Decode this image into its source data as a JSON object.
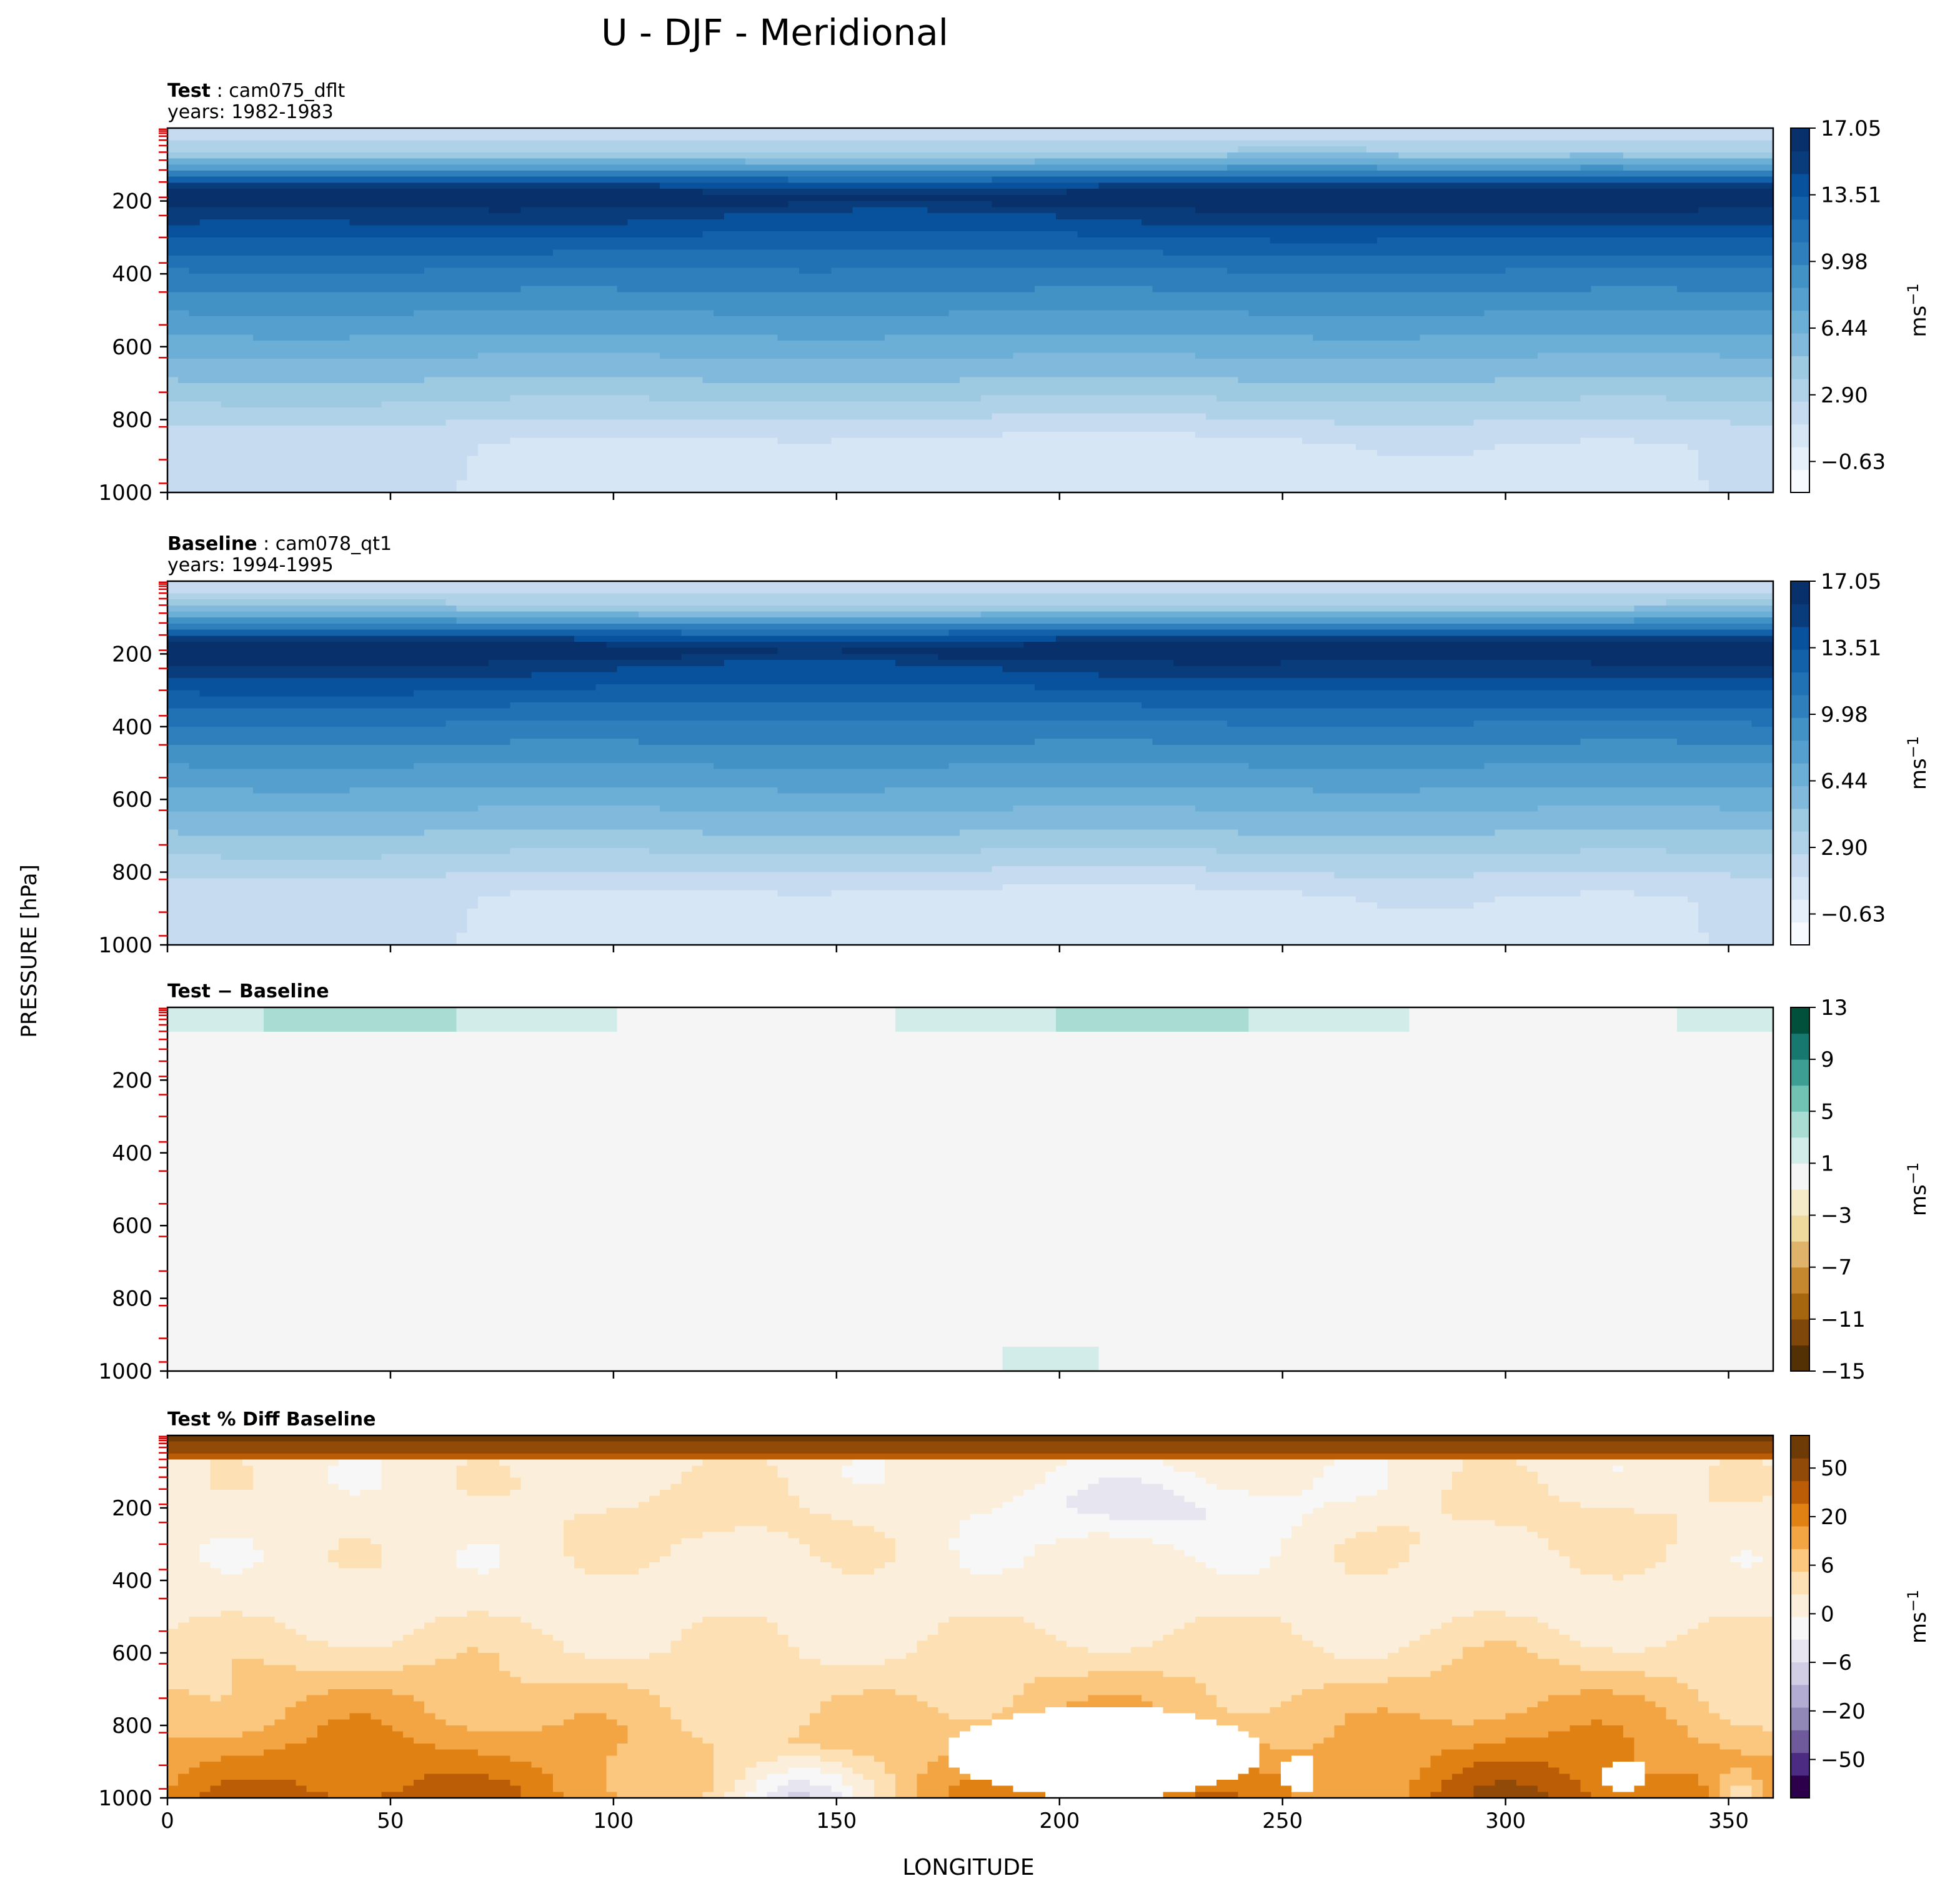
{
  "figure": {
    "title": "U - DJF - Meridional",
    "ylabel": "PRESSURE [hPa]",
    "xlabel": "LONGITUDE"
  },
  "chart_data": [
    {
      "type": "heatmap",
      "header": {
        "bold": "Test",
        "sep": ":",
        "text": "cam075_dflt",
        "line2": "years: 1982-1983"
      },
      "x": {
        "range": [
          0,
          360
        ],
        "ticks": [
          0,
          50,
          100,
          150,
          200,
          250,
          300,
          350
        ],
        "show_labels": false
      },
      "y": {
        "range": [
          1000,
          0
        ],
        "ticks": [
          200,
          400,
          600,
          800,
          1000
        ]
      },
      "colorbar": {
        "ticks": [
          "17.05",
          "13.51",
          "9.98",
          "6.44",
          "2.90",
          "−0.63"
        ],
        "label_base": "ms",
        "label_exp": "−1",
        "colors": [
          "#f7fbff",
          "#e6f0fa",
          "#d6e6f4",
          "#c6dbef",
          "#b0d2e8",
          "#9ecae1",
          "#80b9dc",
          "#6baed6",
          "#549fcd",
          "#4292c6",
          "#2f7fbc",
          "#2171b5",
          "#1361a9",
          "#08519c",
          "#083c7a",
          "#08306b"
        ]
      },
      "field": {
        "jet_levels": [
          180,
          230
        ],
        "jet_longitudes": [
          80,
          240,
          330
        ],
        "surface_minimum_longitudes": [
          150,
          240
        ]
      }
    },
    {
      "type": "heatmap",
      "header": {
        "bold": "Baseline",
        "sep": ":",
        "text": "cam078_qt1",
        "line2": "years: 1994-1995"
      },
      "x": {
        "range": [
          0,
          360
        ],
        "ticks": [
          0,
          50,
          100,
          150,
          200,
          250,
          300,
          350
        ],
        "show_labels": false
      },
      "y": {
        "range": [
          1000,
          0
        ],
        "ticks": [
          200,
          400,
          600,
          800,
          1000
        ]
      },
      "colorbar": {
        "ticks": [
          "17.05",
          "13.51",
          "9.98",
          "6.44",
          "2.90",
          "−0.63"
        ],
        "label_base": "ms",
        "label_exp": "−1",
        "colors": [
          "#f7fbff",
          "#e6f0fa",
          "#d6e6f4",
          "#c6dbef",
          "#b0d2e8",
          "#9ecae1",
          "#80b9dc",
          "#6baed6",
          "#549fcd",
          "#4292c6",
          "#2f7fbc",
          "#2171b5",
          "#1361a9",
          "#08519c",
          "#083c7a",
          "#08306b"
        ]
      },
      "field": {
        "jet_levels": [
          180,
          230
        ],
        "jet_longitudes": [
          60,
          230,
          335
        ],
        "surface_minimum_longitudes": [
          150,
          240
        ]
      }
    },
    {
      "type": "heatmap",
      "header": {
        "bold": "Test − Baseline"
      },
      "x": {
        "range": [
          0,
          360
        ],
        "ticks": [
          0,
          50,
          100,
          150,
          200,
          250,
          300,
          350
        ],
        "show_labels": false
      },
      "y": {
        "range": [
          1000,
          0
        ],
        "ticks": [
          200,
          400,
          600,
          800,
          1000
        ]
      },
      "colorbar": {
        "ticks": [
          "13",
          "9",
          "5",
          "1",
          "−3",
          "−7",
          "−11",
          "−15"
        ],
        "label_base": "ms",
        "label_exp": "−1",
        "colors": [
          "#543005",
          "#7f4709",
          "#a6650f",
          "#c6882e",
          "#dfb46a",
          "#eeda9c",
          "#f6ebc9",
          "#f5f5f5",
          "#d2ede9",
          "#a9ddd3",
          "#72c2b4",
          "#3d9f93",
          "#16786f",
          "#00503c"
        ]
      },
      "field": {
        "positive_band_hpa": [
          0,
          70
        ],
        "uniform_value": 0
      }
    },
    {
      "type": "heatmap",
      "header": {
        "bold": "Test % Diff Baseline"
      },
      "x": {
        "range": [
          0,
          360
        ],
        "ticks": [
          0,
          50,
          100,
          150,
          200,
          250,
          300,
          350
        ],
        "show_labels": true
      },
      "y": {
        "range": [
          1000,
          0
        ],
        "ticks": [
          200,
          400,
          600,
          800,
          1000
        ]
      },
      "colorbar": {
        "ticks": [
          "50",
          "20",
          "6",
          "0",
          "−6",
          "−20",
          "−50"
        ],
        "label_base": "ms",
        "label_exp": "−1",
        "colors": [
          "#2d004b",
          "#4c2b82",
          "#6f5a9c",
          "#9188b8",
          "#b2abd2",
          "#d1cde5",
          "#e7e6f0",
          "#f7f7f7",
          "#fbeedb",
          "#fde0b4",
          "#fbc67e",
          "#f3a443",
          "#e08114",
          "#bb5c06",
          "#924a08",
          "#6e3a05"
        ]
      },
      "field": {
        "top_band_hpa": [
          0,
          60
        ],
        "white_regions": [
          {
            "x": [
              175,
              245
            ],
            "p": [
              750,
              1000
            ]
          },
          {
            "x": [
              250,
              258
            ],
            "p": [
              880,
              990
            ]
          },
          {
            "x": [
              322,
              332
            ],
            "p": [
              900,
              980
            ]
          }
        ],
        "negative_region": {
          "x": [
            180,
            260
          ],
          "p": [
            110,
            350
          ]
        }
      }
    }
  ]
}
